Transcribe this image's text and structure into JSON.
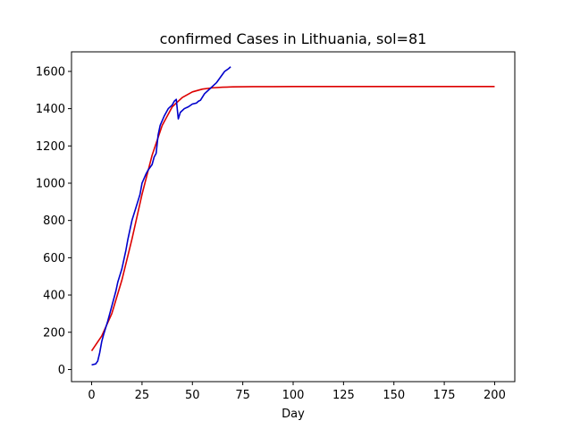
{
  "chart_data": {
    "type": "line",
    "title": "confirmed Cases in Lithuania, sol=81",
    "xlabel": "Day",
    "ylabel": "",
    "xlim": [
      -10,
      210
    ],
    "ylim": [
      -65,
      1705
    ],
    "xticks": [
      0,
      25,
      50,
      75,
      100,
      125,
      150,
      175,
      200
    ],
    "yticks": [
      0,
      200,
      400,
      600,
      800,
      1000,
      1200,
      1400,
      1600
    ],
    "grid": false,
    "series": [
      {
        "color": "#dd0000",
        "x": [
          0,
          5,
          10,
          15,
          20,
          25,
          30,
          35,
          40,
          45,
          50,
          55,
          60,
          65,
          70,
          80,
          90,
          100,
          125,
          150,
          175,
          200
        ],
        "y": [
          100,
          180,
          300,
          480,
          700,
          940,
          1150,
          1310,
          1410,
          1460,
          1490,
          1505,
          1512,
          1515,
          1517,
          1518,
          1518,
          1519,
          1519,
          1519,
          1519,
          1519
        ]
      },
      {
        "color": "#0000cc",
        "x": [
          0,
          2,
          3,
          4,
          5,
          6,
          8,
          10,
          12,
          13,
          15,
          17,
          18,
          20,
          22,
          24,
          25,
          27,
          28,
          30,
          31,
          32,
          33,
          34,
          36,
          37,
          38,
          40,
          41,
          42,
          43,
          44,
          46,
          48,
          50,
          52,
          53,
          54,
          56,
          58,
          60,
          62,
          64,
          66,
          68,
          69
        ],
        "y": [
          25,
          30,
          45,
          90,
          150,
          190,
          260,
          340,
          420,
          470,
          540,
          640,
          700,
          800,
          870,
          940,
          1000,
          1050,
          1070,
          1100,
          1140,
          1160,
          1260,
          1310,
          1360,
          1380,
          1400,
          1420,
          1440,
          1450,
          1345,
          1380,
          1400,
          1410,
          1425,
          1430,
          1440,
          1445,
          1480,
          1500,
          1520,
          1540,
          1570,
          1600,
          1615,
          1625
        ]
      }
    ]
  }
}
